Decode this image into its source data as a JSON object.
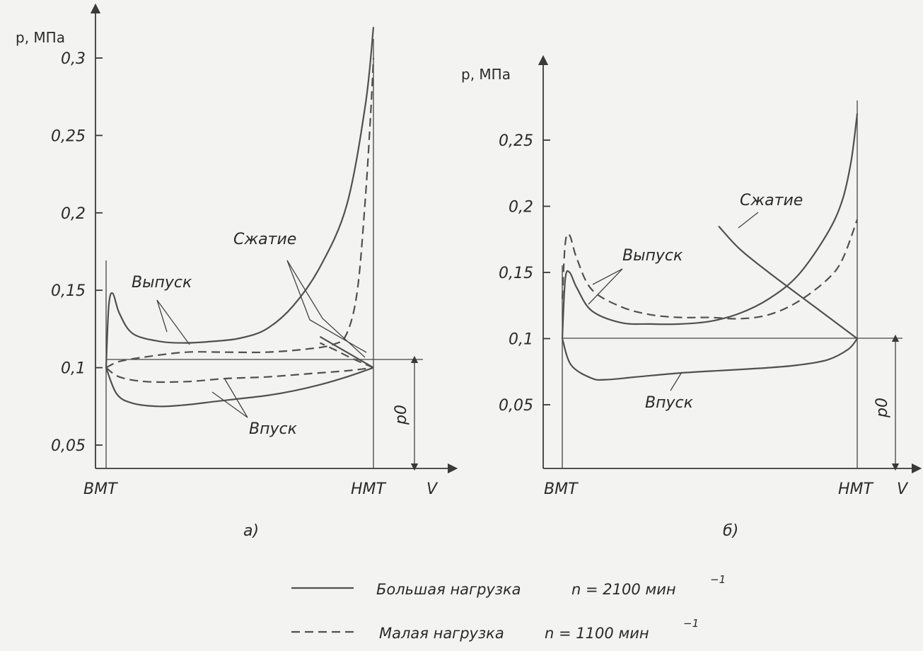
{
  "chart_data": [
    {
      "type": "line",
      "id": "a",
      "caption": "а)",
      "ylabel": "p, МПа",
      "xlabel": "V",
      "x_tick_labels": [
        "ВМТ",
        "НМТ"
      ],
      "y_ticks": [
        0.05,
        0.1,
        0.15,
        0.2,
        0.25,
        0.3
      ],
      "y_tick_labels": [
        "0,05",
        "0,1",
        "0,15",
        "0,2",
        "0,25",
        "0,3"
      ],
      "ylim": [
        0.03,
        0.33
      ],
      "xlim": [
        0,
        1
      ],
      "reference_line": 0.1,
      "p0_label": "p0",
      "annotations": [
        "Выпуск",
        "Сжатие",
        "Впуск"
      ],
      "series": [
        {
          "name": "Выпуск",
          "load": "high",
          "style": "solid",
          "x": [
            0.0,
            0.01,
            0.025,
            0.05,
            0.1,
            0.2,
            0.3,
            0.4,
            0.5,
            0.6,
            0.7,
            0.8,
            0.9,
            0.97,
            1.0
          ],
          "y": [
            0.1,
            0.14,
            0.148,
            0.135,
            0.122,
            0.117,
            0.116,
            0.117,
            0.119,
            0.125,
            0.14,
            0.165,
            0.205,
            0.27,
            0.32
          ]
        },
        {
          "name": "Сжатие",
          "load": "high",
          "style": "solid",
          "x": [
            1.0,
            0.92,
            0.85,
            0.8
          ],
          "y": [
            0.1,
            0.108,
            0.115,
            0.12
          ]
        },
        {
          "name": "Впуск",
          "load": "high",
          "style": "solid",
          "x": [
            0.0,
            0.04,
            0.1,
            0.2,
            0.3,
            0.4,
            0.5,
            0.6,
            0.7,
            0.8,
            0.9,
            1.0
          ],
          "y": [
            0.1,
            0.083,
            0.077,
            0.075,
            0.076,
            0.078,
            0.08,
            0.082,
            0.085,
            0.089,
            0.094,
            0.1
          ]
        },
        {
          "name": "Выпуск",
          "load": "low",
          "style": "dashed",
          "x": [
            0.0,
            0.05,
            0.15,
            0.3,
            0.45,
            0.6,
            0.75,
            0.85,
            0.9,
            0.94,
            0.97,
            0.99,
            1.0
          ],
          "y": [
            0.1,
            0.104,
            0.107,
            0.11,
            0.11,
            0.11,
            0.112,
            0.115,
            0.122,
            0.15,
            0.21,
            0.265,
            0.3
          ]
        },
        {
          "name": "Сжатие",
          "load": "low",
          "style": "dashed",
          "x": [
            1.0,
            0.92,
            0.85,
            0.8
          ],
          "y": [
            0.1,
            0.106,
            0.112,
            0.116
          ]
        },
        {
          "name": "Впуск",
          "load": "low",
          "style": "dashed",
          "x": [
            0.0,
            0.05,
            0.15,
            0.3,
            0.45,
            0.6,
            0.75,
            0.9,
            1.0
          ],
          "y": [
            0.1,
            0.094,
            0.091,
            0.091,
            0.093,
            0.094,
            0.096,
            0.098,
            0.1
          ]
        }
      ]
    },
    {
      "type": "line",
      "id": "b",
      "caption": "б)",
      "ylabel": "p, МПа",
      "xlabel": "V",
      "x_tick_labels": [
        "ВМТ",
        "НМТ"
      ],
      "y_ticks": [
        0.05,
        0.1,
        0.15,
        0.2,
        0.25
      ],
      "y_tick_labels": [
        "0,05",
        "0,1",
        "0,15",
        "0,2",
        "0,25"
      ],
      "ylim": [
        0.0,
        0.28
      ],
      "xlim": [
        0,
        1
      ],
      "reference_line": 0.1,
      "p0_label": "p0",
      "annotations": [
        "Сжатие",
        "Выпуск",
        "Впуск"
      ],
      "series": [
        {
          "name": "Выпуск",
          "load": "high",
          "style": "solid",
          "x": [
            0.0,
            0.01,
            0.025,
            0.05,
            0.1,
            0.2,
            0.3,
            0.4,
            0.5,
            0.6,
            0.7,
            0.8,
            0.9,
            0.95,
            0.98,
            1.0
          ],
          "y": [
            0.1,
            0.145,
            0.15,
            0.138,
            0.121,
            0.112,
            0.111,
            0.111,
            0.113,
            0.119,
            0.13,
            0.148,
            0.18,
            0.205,
            0.235,
            0.27
          ]
        },
        {
          "name": "Сжатие",
          "load": "high",
          "style": "solid",
          "x": [
            1.0,
            0.85,
            0.7,
            0.6,
            0.53
          ],
          "y": [
            0.1,
            0.125,
            0.15,
            0.168,
            0.185
          ]
        },
        {
          "name": "Впуск",
          "load": "high",
          "style": "solid",
          "x": [
            0.0,
            0.03,
            0.1,
            0.15,
            0.25,
            0.4,
            0.55,
            0.7,
            0.8,
            0.9,
            0.97,
            1.0
          ],
          "y": [
            0.1,
            0.08,
            0.07,
            0.069,
            0.071,
            0.074,
            0.076,
            0.078,
            0.08,
            0.084,
            0.092,
            0.1
          ]
        },
        {
          "name": "Выпуск",
          "load": "low",
          "style": "dashed",
          "x": [
            0.0,
            0.01,
            0.025,
            0.05,
            0.1,
            0.2,
            0.3,
            0.4,
            0.5,
            0.6,
            0.7,
            0.8,
            0.9,
            0.95,
            1.0
          ],
          "y": [
            0.13,
            0.172,
            0.178,
            0.16,
            0.137,
            0.124,
            0.118,
            0.116,
            0.116,
            0.115,
            0.118,
            0.128,
            0.145,
            0.16,
            0.19
          ]
        }
      ]
    }
  ],
  "legend": {
    "items": [
      {
        "style": "solid",
        "label": "Большая нагрузка",
        "speed": "n = 2100 мин",
        "exp": "−1"
      },
      {
        "style": "dashed",
        "label": "Малая нагрузка",
        "speed": "n = 1100 мин",
        "exp": "−1"
      }
    ]
  }
}
